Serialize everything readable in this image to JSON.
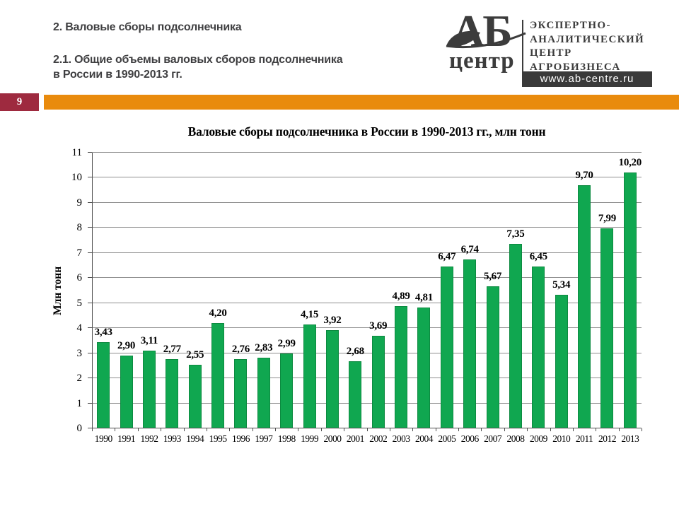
{
  "header": {
    "title": "2. Валовые сборы подсолнечника",
    "subtitle": "2.1.  Общие объемы валовых сборов подсолнечника\nв России в 1990-2013 гг."
  },
  "logo": {
    "ab": "АБ",
    "centre": "центр",
    "org_lines": [
      "ЭКСПЕРТНО-",
      "АНАЛИТИЧЕСКИЙ",
      "ЦЕНТР",
      "АГРОБИЗНЕСА"
    ],
    "website": "www.ab-centre.ru"
  },
  "page": {
    "number": "9"
  },
  "colors": {
    "bar_fill": "#10a750",
    "bar_border": "#0c8a40",
    "band_orange": "#e98b0d",
    "badge_maroon": "#9e2a3f",
    "logo_gray": "#3c3c3c",
    "header_gray": "#3f3f41",
    "gridline_gray": "#8f8f8f"
  },
  "chart_data": {
    "type": "bar",
    "title": "Валовые сборы подсолнечника в России в 1990-2013 гг., млн тонн",
    "xlabel": "",
    "ylabel": "Млн тонн",
    "ylim": [
      0,
      11
    ],
    "ytick_step": 1,
    "grid": true,
    "legend": false,
    "decimal_separator": ",",
    "categories": [
      "1990",
      "1991",
      "1992",
      "1993",
      "1994",
      "1995",
      "1996",
      "1997",
      "1998",
      "1999",
      "2000",
      "2001",
      "2002",
      "2003",
      "2004",
      "2005",
      "2006",
      "2007",
      "2008",
      "2009",
      "2010",
      "2011",
      "2012",
      "2013"
    ],
    "values": [
      3.43,
      2.9,
      3.11,
      2.77,
      2.55,
      4.2,
      2.76,
      2.83,
      2.99,
      4.15,
      3.92,
      2.68,
      3.69,
      4.89,
      4.81,
      6.47,
      6.74,
      5.67,
      7.35,
      6.45,
      5.34,
      9.7,
      7.99,
      10.2
    ]
  }
}
